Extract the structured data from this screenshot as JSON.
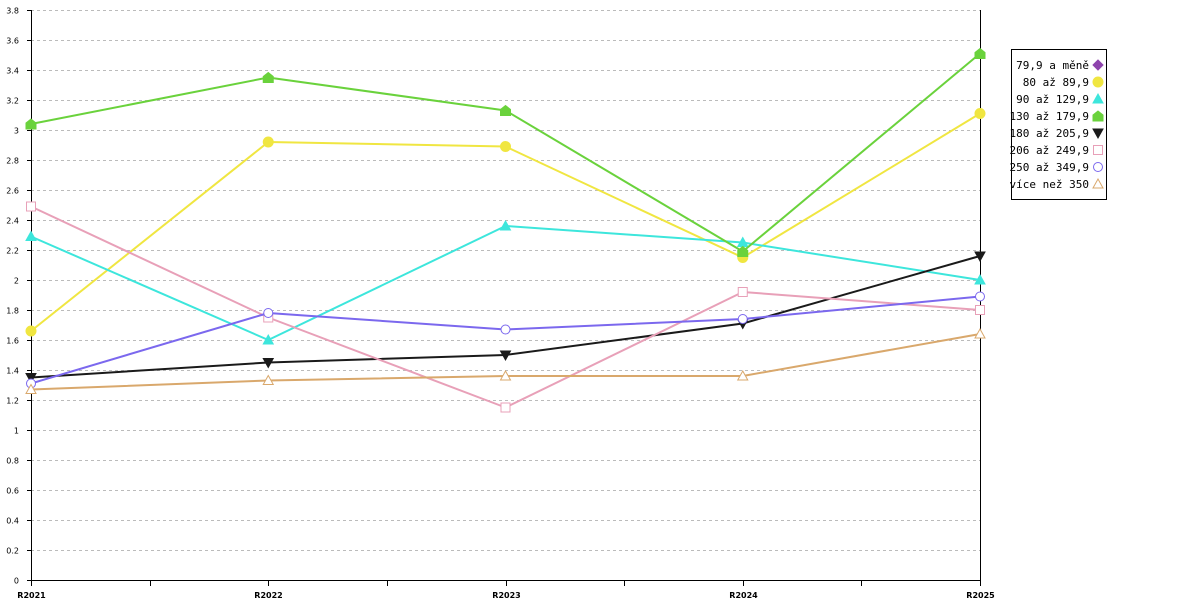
{
  "chart_data": {
    "type": "line",
    "categories": [
      "R2021",
      "R2022",
      "R2023",
      "R2024",
      "R2025"
    ],
    "ylim": [
      0,
      3.8
    ],
    "yticks": [
      "0",
      "0.2",
      "0.4",
      "0.6",
      "0.8",
      "1",
      "1.2",
      "1.4",
      "1.6",
      "1.8",
      "2",
      "2.2",
      "2.4",
      "2.6",
      "2.8",
      "3",
      "3.2",
      "3.4",
      "3.6",
      "3.8"
    ],
    "grid": true,
    "legend_position": "top-right",
    "title": "",
    "xlabel": "",
    "ylabel": "",
    "series": [
      {
        "name": "79,9 a měně",
        "marker": "diamond-filled",
        "color": "#8e44ad",
        "values": [
          null,
          null,
          null,
          null,
          null
        ]
      },
      {
        "name": "80 až 89,9",
        "marker": "circle-filled",
        "color": "#f0e641",
        "values": [
          1.66,
          2.92,
          2.89,
          2.15,
          3.11
        ]
      },
      {
        "name": "90 až 129,9",
        "marker": "triangle-up-filled",
        "color": "#3de6dc",
        "values": [
          2.29,
          1.6,
          2.36,
          2.25,
          2.0
        ]
      },
      {
        "name": "130 až 179,9",
        "marker": "house-filled",
        "color": "#6ad23c",
        "values": [
          3.04,
          3.35,
          3.13,
          2.19,
          3.51
        ]
      },
      {
        "name": "180 až 205,9",
        "marker": "triangle-down-filled",
        "color": "#1a1a1a",
        "values": [
          1.35,
          1.45,
          1.5,
          1.71,
          2.16
        ]
      },
      {
        "name": "206 až 249,9",
        "marker": "square-open",
        "color": "#e8a0b8",
        "values": [
          2.49,
          1.75,
          1.15,
          1.92,
          1.8
        ]
      },
      {
        "name": "250 až 349,9",
        "marker": "circle-open",
        "color": "#7b68ee",
        "values": [
          1.31,
          1.78,
          1.67,
          1.74,
          1.89
        ]
      },
      {
        "name": "více než 350",
        "marker": "triangle-up-open",
        "color": "#d9a86c",
        "values": [
          1.27,
          1.33,
          1.36,
          1.36,
          1.64
        ]
      }
    ]
  }
}
